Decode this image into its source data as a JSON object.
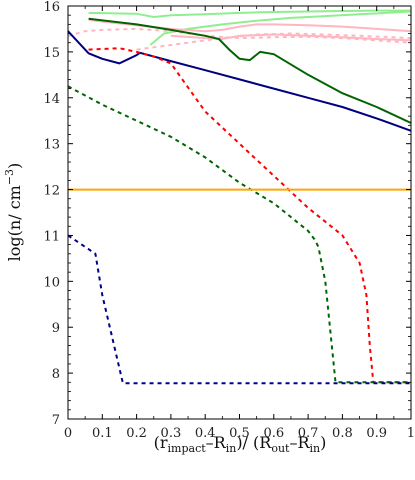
{
  "chart_data": {
    "type": "line",
    "title": "",
    "xlabel": {
      "main": "(r",
      "sub1": "impact",
      "mid": "–R",
      "sub2": "in",
      "rest": ")/ (R",
      "sub3": "out",
      "mid2": "–R",
      "sub4": "in",
      "end": ")"
    },
    "ylabel": {
      "main": "log(n/ cm",
      "sup": "−3",
      "end": ")"
    },
    "xlim": [
      0,
      1
    ],
    "ylim": [
      7,
      16
    ],
    "xticks": [
      "0",
      "0.1",
      "0.2",
      "0.3",
      "0.4",
      "0.5",
      "0.6",
      "0.7",
      "0.8",
      "0.9",
      "1"
    ],
    "yticks": [
      "7",
      "8",
      "9",
      "10",
      "11",
      "12",
      "13",
      "14",
      "15",
      "16"
    ],
    "grid": false,
    "legend": "none",
    "series": [
      {
        "color": "#90ee90",
        "dash": "solid",
        "x": [
          0.06,
          0.2,
          0.25,
          0.3,
          0.4,
          0.5,
          0.55,
          0.6,
          0.7,
          0.8,
          0.9,
          1.0
        ],
        "y": [
          15.85,
          15.83,
          15.76,
          15.8,
          15.82,
          15.85,
          15.86,
          15.87,
          15.88,
          15.89,
          15.9,
          15.9
        ]
      },
      {
        "color": "#90ee90",
        "dash": "solid",
        "x": [
          0.24,
          0.28,
          0.35,
          0.45,
          0.55,
          0.65,
          0.75,
          0.85,
          1.0
        ],
        "y": [
          15.15,
          15.4,
          15.5,
          15.6,
          15.68,
          15.74,
          15.78,
          15.82,
          15.88
        ]
      },
      {
        "color": "#ffb6c1",
        "dash": "solid",
        "x": [
          0.06,
          0.1,
          0.2,
          0.3,
          0.4,
          0.45,
          0.5,
          0.55,
          0.6,
          0.7,
          0.8,
          0.9,
          1.0
        ],
        "y": [
          15.7,
          15.66,
          15.58,
          15.5,
          15.45,
          15.48,
          15.55,
          15.6,
          15.6,
          15.58,
          15.55,
          15.5,
          15.45
        ]
      },
      {
        "color": "#ffb6c1",
        "dash": "solid",
        "x": [
          0.3,
          0.4,
          0.45,
          0.5,
          0.6,
          0.7,
          0.8,
          0.9,
          1.0
        ],
        "y": [
          15.35,
          15.3,
          15.28,
          15.35,
          15.38,
          15.35,
          15.32,
          15.28,
          15.25
        ]
      },
      {
        "color": "#ffb6c1",
        "dash": "dashed",
        "x": [
          0.0,
          0.05,
          0.1,
          0.2,
          0.3,
          0.4,
          0.5,
          0.6,
          0.7,
          0.8,
          0.9,
          1.0
        ],
        "y": [
          15.35,
          15.45,
          15.48,
          15.5,
          15.45,
          15.35,
          15.3,
          15.32,
          15.33,
          15.3,
          15.25,
          15.2
        ]
      },
      {
        "color": "#ffb6c1",
        "dash": "dashed",
        "x": [
          0.2,
          0.3,
          0.45,
          0.55,
          0.65,
          0.75,
          0.85,
          1.0
        ],
        "y": [
          15.05,
          15.15,
          15.3,
          15.38,
          15.4,
          15.38,
          15.35,
          15.3
        ]
      },
      {
        "color": "#000080",
        "dash": "solid",
        "x": [
          0.0,
          0.06,
          0.1,
          0.15,
          0.2,
          0.21,
          0.3,
          0.4,
          0.5,
          0.6,
          0.7,
          0.8,
          0.9,
          1.0
        ],
        "y": [
          15.45,
          14.97,
          14.85,
          14.75,
          14.93,
          14.98,
          14.8,
          14.6,
          14.4,
          14.2,
          14.0,
          13.8,
          13.55,
          13.28
        ]
      },
      {
        "color": "#006400",
        "dash": "solid",
        "x": [
          0.06,
          0.2,
          0.3,
          0.4,
          0.44,
          0.47,
          0.5,
          0.53,
          0.56,
          0.6,
          0.7,
          0.8,
          0.9,
          1.0
        ],
        "y": [
          15.72,
          15.6,
          15.48,
          15.35,
          15.28,
          15.05,
          14.85,
          14.82,
          15.0,
          14.95,
          14.5,
          14.1,
          13.8,
          13.45
        ]
      },
      {
        "color": "#ff0000",
        "dash": "dashed",
        "x": [
          0.06,
          0.15,
          0.2,
          0.25,
          0.3,
          0.4,
          0.5,
          0.6,
          0.7,
          0.8,
          0.85,
          0.87,
          0.88,
          0.89,
          1.0
        ],
        "y": [
          15.05,
          15.08,
          15.0,
          14.9,
          14.75,
          13.7,
          13.0,
          12.3,
          11.6,
          11.0,
          10.4,
          9.7,
          8.6,
          7.8,
          7.8
        ]
      },
      {
        "color": "#006400",
        "dash": "dashed",
        "x": [
          0.0,
          0.1,
          0.2,
          0.3,
          0.4,
          0.5,
          0.6,
          0.7,
          0.72,
          0.73,
          0.75,
          0.78,
          1.0
        ],
        "y": [
          14.25,
          13.85,
          13.5,
          13.15,
          12.7,
          12.15,
          11.7,
          11.1,
          10.9,
          10.75,
          10.0,
          7.8,
          7.8
        ]
      },
      {
        "color": "#00008b",
        "dash": "dashed",
        "x": [
          0.0,
          0.06,
          0.08,
          0.1,
          0.16,
          0.2,
          0.4,
          0.6,
          0.8,
          1.0
        ],
        "y": [
          11.0,
          10.7,
          10.6,
          9.7,
          7.78,
          7.78,
          7.78,
          7.78,
          7.78,
          7.78
        ]
      },
      {
        "color": "#ffa500",
        "dash": "solid",
        "x": [
          0.0,
          1.0
        ],
        "y": [
          12.0,
          12.0
        ]
      }
    ]
  }
}
